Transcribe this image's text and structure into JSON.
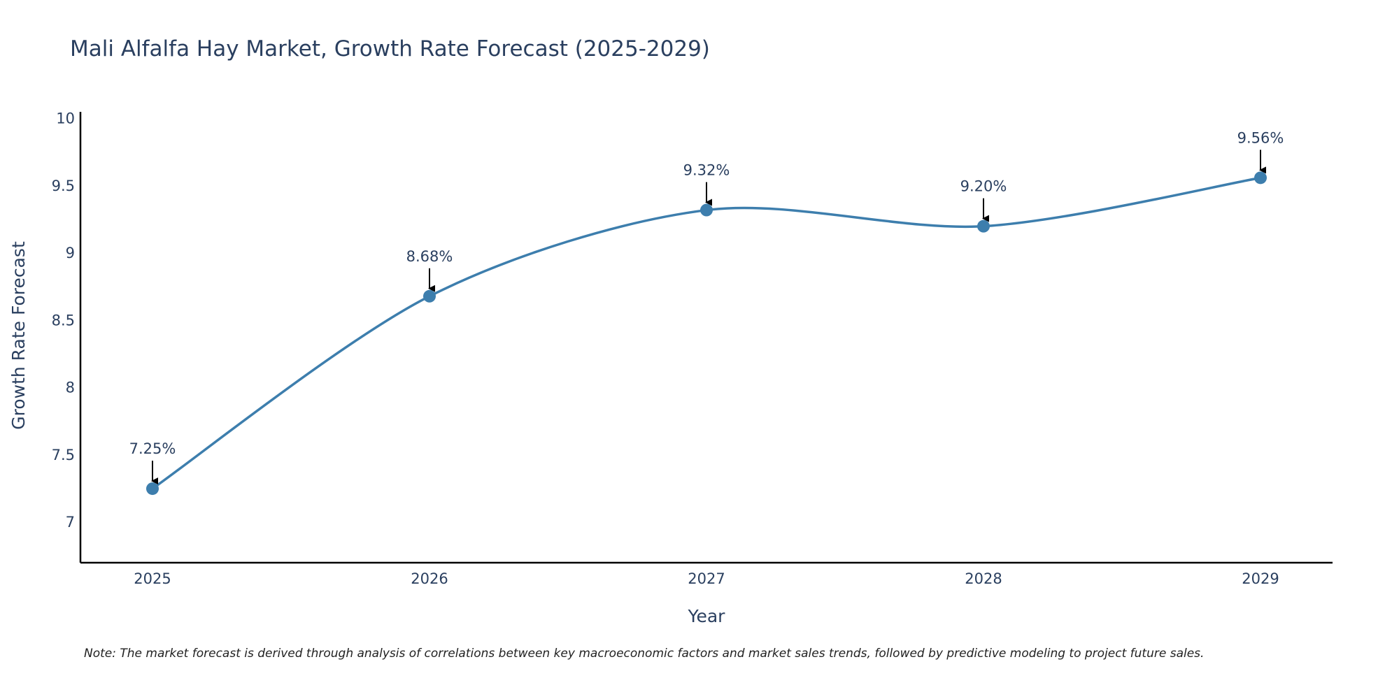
{
  "chart_data": {
    "type": "line",
    "title": "Mali Alfalfa Hay Market, Growth Rate Forecast (2025-2029)",
    "xlabel": "Year",
    "ylabel": "Growth Rate Forecast",
    "categories": [
      "2025",
      "2026",
      "2027",
      "2028",
      "2029"
    ],
    "series": [
      {
        "name": "Growth Rate Forecast",
        "values": [
          7.25,
          8.68,
          9.32,
          9.2,
          9.56
        ],
        "labels": [
          "7.25%",
          "8.68%",
          "9.32%",
          "9.20%",
          "9.56%"
        ]
      }
    ],
    "ylim": [
      6.7,
      10.05
    ],
    "yticks": [
      7,
      7.5,
      8,
      8.5,
      9,
      9.5,
      10
    ],
    "ytick_labels": [
      "7",
      "7.5",
      "8",
      "8.5",
      "9",
      "9.5",
      "10"
    ],
    "grid": false,
    "note": "Note: The market forecast is derived through analysis of correlations between key macroeconomic factors and market sales trends, followed by predictive modeling to project future sales.",
    "colors": {
      "line": "#3d7ead",
      "marker": "#3d7ead",
      "axis": "#000000",
      "text": "#2a3f5f"
    }
  }
}
